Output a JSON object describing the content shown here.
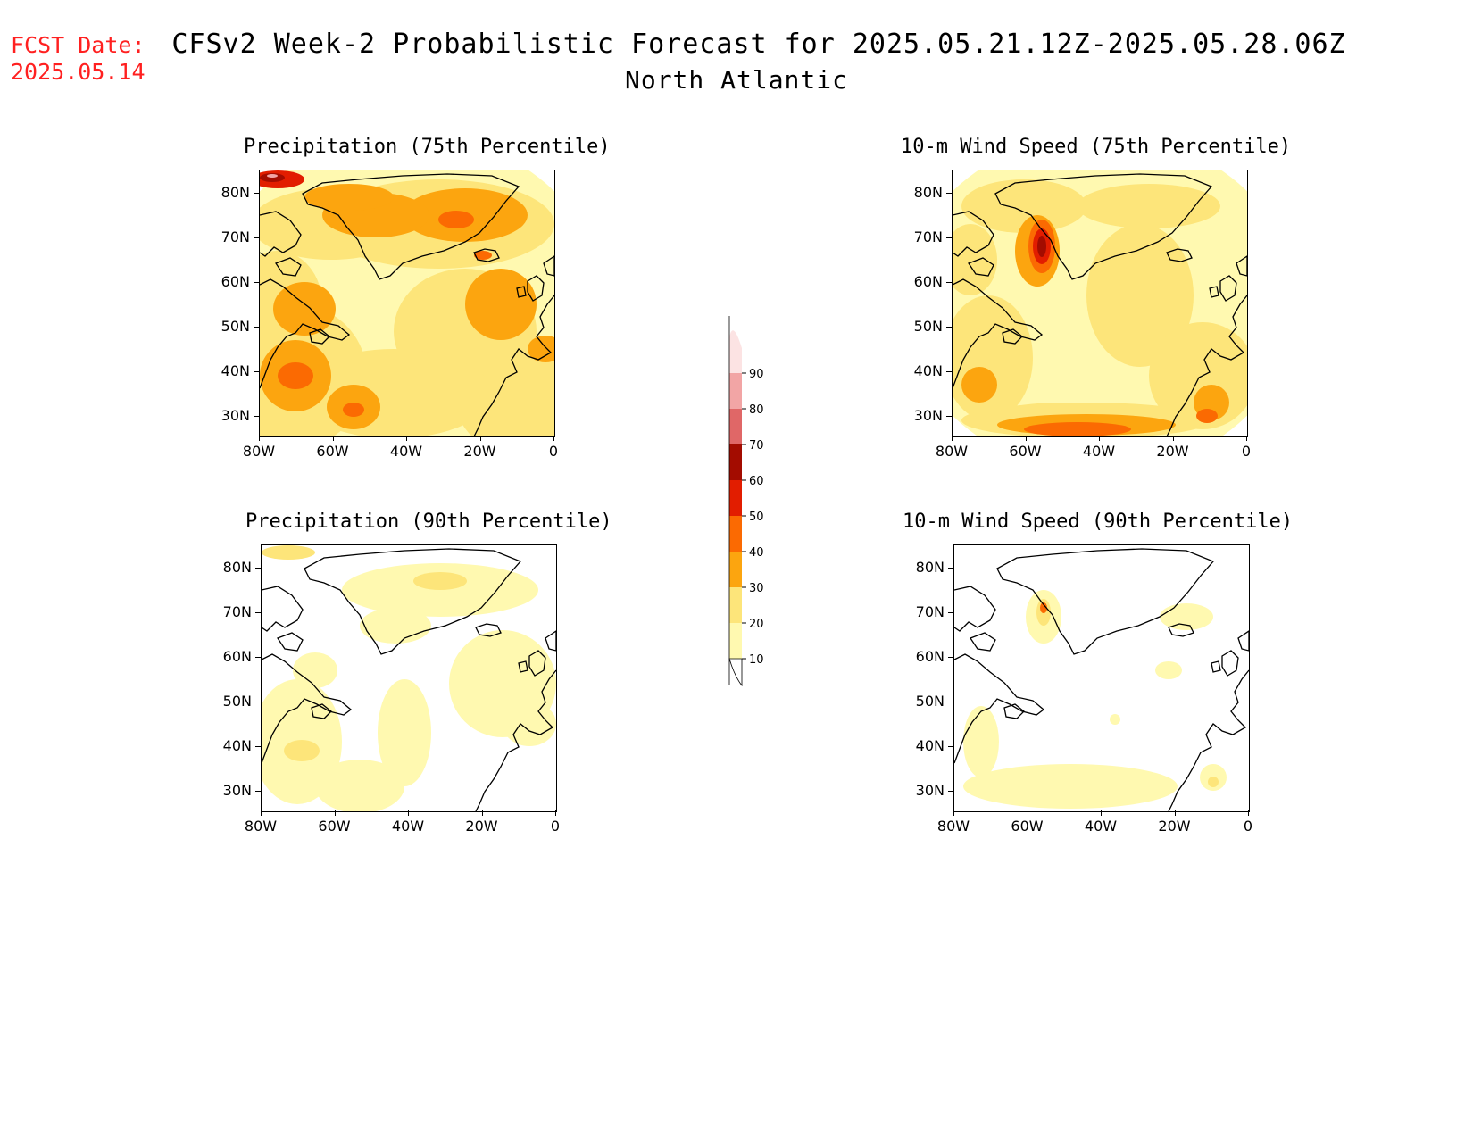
{
  "header": {
    "fcst_label": "FCST Date:",
    "fcst_date": "2025.05.14",
    "title": "CFSv2 Week-2 Probabilistic Forecast for 2025.05.21.12Z-2025.05.28.06Z",
    "region": "North Atlantic"
  },
  "panels": [
    {
      "title": "Precipitation (75th Percentile)",
      "id": "precip75"
    },
    {
      "title": "10-m Wind Speed (75th Percentile)",
      "id": "wind75"
    },
    {
      "title": "Precipitation (90th Percentile)",
      "id": "precip90"
    },
    {
      "title": "10-m Wind Speed (90th Percentile)",
      "id": "wind90"
    }
  ],
  "axes": {
    "lat_labels": [
      "80N",
      "70N",
      "60N",
      "50N",
      "40N",
      "30N"
    ],
    "lon_labels": [
      "80W",
      "60W",
      "40W",
      "20W",
      "0"
    ]
  },
  "colorbar": {
    "levels": [
      "10",
      "20",
      "30",
      "40",
      "50",
      "60",
      "70",
      "80",
      "90"
    ],
    "colors": [
      "#fff9b0",
      "#fde57a",
      "#fca50f",
      "#fb6a02",
      "#e21d00",
      "#a30c00",
      "#e06767",
      "#f2a5a5",
      "#fce3e3"
    ]
  }
}
